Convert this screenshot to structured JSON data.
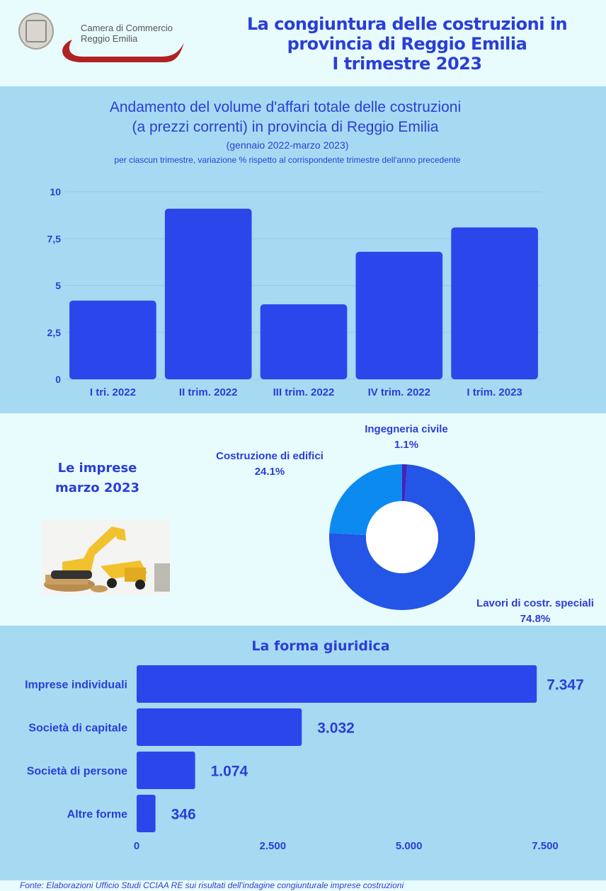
{
  "header": {
    "org_line1": "Camera di Commercio",
    "org_line2": "Reggio Emilia",
    "title_lines": [
      "La congiuntura delle costruzioni in",
      "provincia di Reggio Emilia",
      "I trimestre 2023"
    ]
  },
  "colors": {
    "bar": "#2b47eb",
    "accent": "#2a3ed6",
    "band": "#a6daf2",
    "background": "#e8fbfd"
  },
  "chart_data": [
    {
      "type": "bar",
      "title_lines": [
        "Andamento del volume d'affari totale delle costruzioni",
        "(a prezzi correnti) in provincia di Reggio Emilia"
      ],
      "period": "(gennaio 2022-marzo 2023)",
      "subtitle": "per ciascun trimestre, variazione % rispetto al corrispondente  trimestre dell'anno precedente",
      "categories": [
        "I tri. 2022",
        "II trim. 2022",
        "III trim. 2022",
        "IV trim. 2022",
        "I trim. 2023"
      ],
      "values": [
        4.2,
        9.1,
        4.0,
        6.8,
        8.1
      ],
      "ylim": [
        0,
        10
      ],
      "yticks": [
        0,
        2.5,
        5,
        7.5,
        10
      ],
      "ytick_labels": [
        "0",
        "2,5",
        "5",
        "7,5",
        "10"
      ],
      "grid": true,
      "xlabel": "",
      "ylabel": ""
    },
    {
      "type": "pie",
      "title_lines": [
        "Le imprese",
        "marzo 2023"
      ],
      "slices": [
        {
          "label": "Ingegneria civile",
          "value": 1.1,
          "value_label": "1.1%",
          "color": "#4e1fb5"
        },
        {
          "label": "Lavori di costr. speciali",
          "value": 74.8,
          "value_label": "74.8%",
          "color": "#2355e6"
        },
        {
          "label": "Costruzione di edifici",
          "value": 24.1,
          "value_label": "24.1%",
          "color": "#0d8af0"
        }
      ]
    },
    {
      "type": "bar",
      "orientation": "horizontal",
      "title": "La forma giuridica",
      "categories": [
        "Imprese individuali",
        "Società di capitale",
        "Società di persone",
        "Altre forme"
      ],
      "values": [
        7347,
        3032,
        1074,
        346
      ],
      "value_labels": [
        "7.347",
        "3.032",
        "1.074",
        "346"
      ],
      "xlim": [
        0,
        7500
      ],
      "xticks": [
        0,
        2500,
        5000,
        7500
      ],
      "xtick_labels": [
        "0",
        "2.500",
        "5.000",
        "7.500"
      ],
      "grid": false
    }
  ],
  "footer": {
    "source": "Fonte: Elaborazioni Ufficio Studi CCIAA RE sui risultati dell'indagine congiunturale imprese costruzioni"
  }
}
